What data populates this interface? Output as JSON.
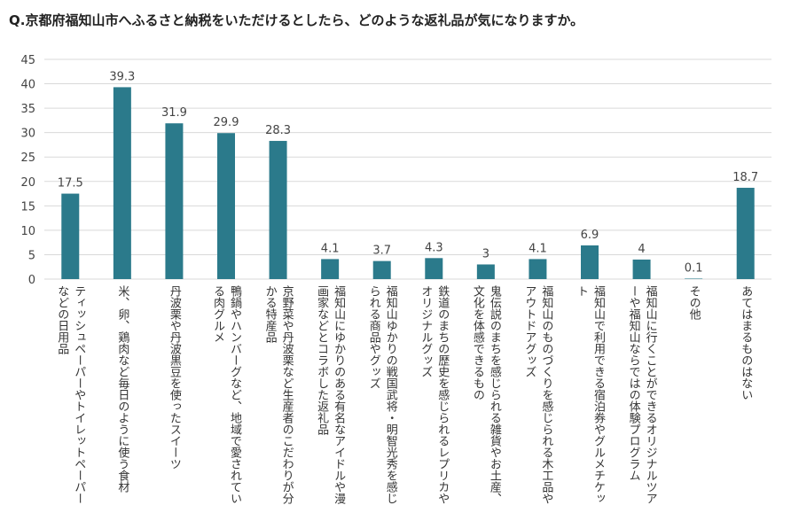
{
  "chart_data": {
    "type": "bar",
    "title": "Q.京都府福知山市へふるさと納税をいただけるとしたら、どのような返礼品が気になりますか。",
    "categories": [
      "ティッシュペーパーやトイレットペーパーなどの日用品",
      "米、卵、鶏肉など毎日のように使う食材",
      "丹波栗や丹波黒豆を使ったスイーツ",
      "鴨鍋やハンバーグなど、地域で愛されている肉グルメ",
      "京野菜や丹波栗など生産者のこだわりが分かる特産品",
      "福知山にゆかりのある有名なアイドルや漫画家などとコラボした返礼品",
      "福知山ゆかりの戦国武将・明智光秀を感じられる商品やグッズ",
      "鉄道のまちの歴史を感じられるレプリカやオリジナルグッズ",
      "鬼伝説のまちを感じられる雑貨やお土産、文化を体感できるもの",
      "福知山のものづくりを感じられる木工品やアウトドアグッズ",
      "福知山で利用できる宿泊券やグルメチケット",
      "福知山に行くことができるオリジナルツアーや福知山ならではの体験プログラム",
      "その他",
      "あてはまるものはない"
    ],
    "values": [
      17.5,
      39.3,
      31.9,
      29.9,
      28.3,
      4.1,
      3.7,
      4.3,
      3,
      4.1,
      6.9,
      4,
      0.1,
      18.7
    ],
    "color": "#2b7a8b",
    "ylim": [
      0,
      45
    ],
    "yticks": [
      0,
      5,
      10,
      15,
      20,
      25,
      30,
      35,
      40,
      45
    ],
    "grid": true
  }
}
